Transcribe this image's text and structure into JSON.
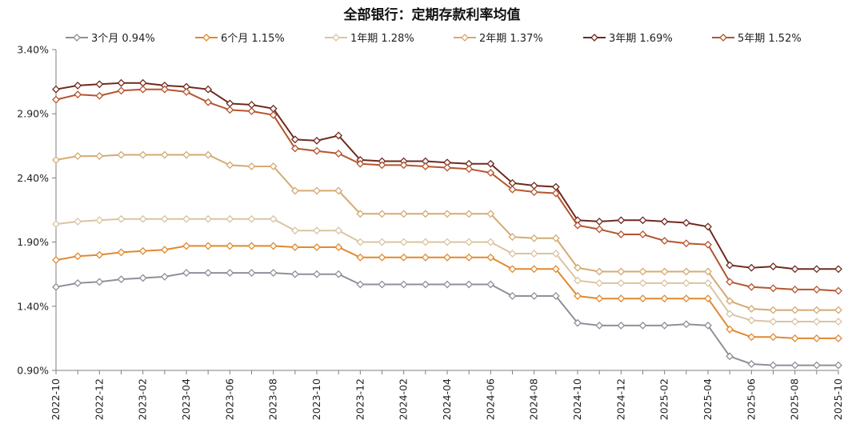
{
  "chart_data": {
    "type": "line",
    "title": "全部银行：定期存款利率均值",
    "xlabel": "",
    "ylabel": "",
    "ylim": [
      0.9,
      3.4
    ],
    "yticks": [
      "0.90%",
      "1.40%",
      "1.90%",
      "2.40%",
      "2.90%",
      "3.40%"
    ],
    "xtick_labels": [
      "2022-10",
      "2022-12",
      "2023-02",
      "2023-04",
      "2023-06",
      "2023-08",
      "2023-10",
      "2023-12",
      "2024-02",
      "2024-04",
      "2024-06",
      "2024-08",
      "2024-10",
      "2024-12",
      "2025-02",
      "2025-04",
      "2025-06",
      "2025-08",
      "2025-10"
    ],
    "x": [
      "2022-10",
      "2022-11",
      "2022-12",
      "2023-01",
      "2023-02",
      "2023-03",
      "2023-04",
      "2023-05",
      "2023-06",
      "2023-07",
      "2023-08",
      "2023-09",
      "2023-10",
      "2023-11",
      "2023-12",
      "2024-01",
      "2024-02",
      "2024-03",
      "2024-04",
      "2024-05",
      "2024-06",
      "2024-07",
      "2024-08",
      "2024-09",
      "2024-10",
      "2024-11",
      "2024-12",
      "2025-01",
      "2025-02",
      "2025-03",
      "2025-04",
      "2025-05",
      "2025-06",
      "2025-07",
      "2025-08",
      "2025-09",
      "2025-10"
    ],
    "grid": false,
    "legend_position": "top",
    "series": [
      {
        "name": "3个月",
        "last_label": "0.94%",
        "color": "#8f8f99",
        "values": [
          1.55,
          1.58,
          1.59,
          1.61,
          1.62,
          1.63,
          1.66,
          1.66,
          1.66,
          1.66,
          1.66,
          1.65,
          1.65,
          1.65,
          1.57,
          1.57,
          1.57,
          1.57,
          1.57,
          1.57,
          1.57,
          1.48,
          1.48,
          1.48,
          1.27,
          1.25,
          1.25,
          1.25,
          1.25,
          1.26,
          1.25,
          1.01,
          0.95,
          0.94,
          0.94,
          0.94,
          0.94
        ]
      },
      {
        "name": "6个月",
        "last_label": "1.15%",
        "color": "#e0892e",
        "values": [
          1.76,
          1.79,
          1.8,
          1.82,
          1.83,
          1.84,
          1.87,
          1.87,
          1.87,
          1.87,
          1.87,
          1.86,
          1.86,
          1.86,
          1.78,
          1.78,
          1.78,
          1.78,
          1.78,
          1.78,
          1.78,
          1.69,
          1.69,
          1.69,
          1.48,
          1.46,
          1.46,
          1.46,
          1.46,
          1.46,
          1.46,
          1.22,
          1.16,
          1.16,
          1.15,
          1.15,
          1.15
        ]
      },
      {
        "name": "1年期",
        "last_label": "1.28%",
        "color": "#d9c4a3",
        "values": [
          2.04,
          2.06,
          2.07,
          2.08,
          2.08,
          2.08,
          2.08,
          2.08,
          2.08,
          2.08,
          2.08,
          1.99,
          1.99,
          1.99,
          1.9,
          1.9,
          1.9,
          1.9,
          1.9,
          1.9,
          1.9,
          1.81,
          1.81,
          1.81,
          1.6,
          1.58,
          1.58,
          1.58,
          1.58,
          1.58,
          1.58,
          1.34,
          1.29,
          1.28,
          1.28,
          1.28,
          1.28
        ]
      },
      {
        "name": "2年期",
        "last_label": "1.37%",
        "color": "#d4aa72",
        "values": [
          2.54,
          2.57,
          2.57,
          2.58,
          2.58,
          2.58,
          2.58,
          2.58,
          2.5,
          2.49,
          2.49,
          2.3,
          2.3,
          2.3,
          2.12,
          2.12,
          2.12,
          2.12,
          2.12,
          2.12,
          2.12,
          1.94,
          1.93,
          1.93,
          1.7,
          1.67,
          1.67,
          1.67,
          1.67,
          1.67,
          1.67,
          1.44,
          1.38,
          1.37,
          1.37,
          1.37,
          1.37
        ]
      },
      {
        "name": "3年期",
        "last_label": "1.69%",
        "color": "#6e2a1e",
        "values": [
          3.09,
          3.12,
          3.13,
          3.14,
          3.14,
          3.12,
          3.11,
          3.09,
          2.98,
          2.97,
          2.94,
          2.7,
          2.69,
          2.73,
          2.54,
          2.53,
          2.53,
          2.53,
          2.52,
          2.51,
          2.51,
          2.36,
          2.34,
          2.33,
          2.07,
          2.06,
          2.07,
          2.07,
          2.06,
          2.05,
          2.02,
          1.72,
          1.7,
          1.71,
          1.69,
          1.69,
          1.69
        ]
      },
      {
        "name": "5年期",
        "last_label": "1.52%",
        "color": "#b5552e",
        "values": [
          3.01,
          3.05,
          3.04,
          3.08,
          3.09,
          3.09,
          3.07,
          2.99,
          2.93,
          2.92,
          2.89,
          2.63,
          2.61,
          2.59,
          2.51,
          2.5,
          2.5,
          2.49,
          2.48,
          2.47,
          2.44,
          2.31,
          2.29,
          2.28,
          2.03,
          2.0,
          1.96,
          1.96,
          1.91,
          1.89,
          1.88,
          1.59,
          1.55,
          1.54,
          1.53,
          1.53,
          1.52
        ]
      }
    ]
  }
}
